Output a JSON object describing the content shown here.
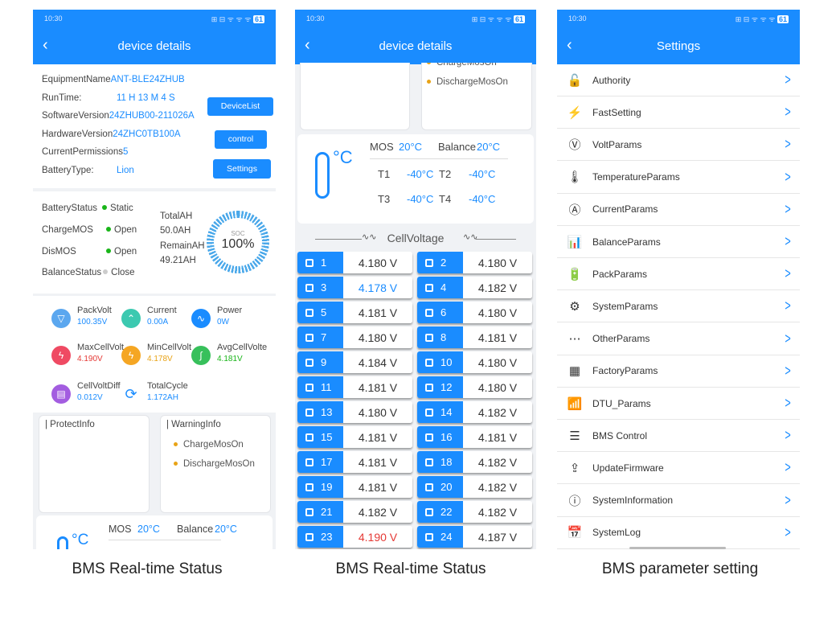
{
  "status_time": "10:30",
  "status_icons": "⊞ ⊟ ᯤ ᯤ ᯤ",
  "battery_level": "61",
  "phone1": {
    "title": "device details",
    "info": {
      "equipment_name_key": "EquipmentName",
      "equipment_name": "ANT-BLE24ZHUB",
      "runtime_key": "RunTime:",
      "runtime": "11 H 13 M 4 S",
      "software_key": "SoftwareVersion",
      "software": "24ZHUB00-211026A",
      "hardware_key": "HardwareVersion",
      "hardware": "24ZHC0TB100A",
      "permissions_key": "CurrentPermissions",
      "permissions": "5",
      "battery_type_key": "BatteryType:",
      "battery_type": "Lion"
    },
    "buttons": {
      "device_list": "DeviceList",
      "control": "control",
      "settings": "Settings"
    },
    "status": {
      "battery_status_key": "BatteryStatus",
      "battery_status": "Static",
      "charge_mos_key": "ChargeMOS",
      "charge_mos": "Open",
      "dis_mos_key": "DisMOS",
      "dis_mos": "Open",
      "balance_status_key": "BalanceStatus",
      "balance_status": "Close",
      "total_ah_key": "TotalAH",
      "total_ah": "50.0AH",
      "remain_ah_key": "RemainAH",
      "remain_ah": "49.21AH",
      "soc_label": "SOC",
      "soc_value": "100%"
    },
    "params": {
      "pack_volt_key": "PackVolt",
      "pack_volt": "100.35V",
      "current_key": "Current",
      "current": "0.00A",
      "power_key": "Power",
      "power": "0W",
      "max_cell_key": "MaxCellVolt",
      "max_cell": "4.190V",
      "min_cell_key": "MinCellVolt",
      "min_cell": "4.178V",
      "avg_cell_key": "AvgCellVolte",
      "avg_cell": "4.181V",
      "cell_diff_key": "CellVoltDiff",
      "cell_diff": "0.012V",
      "total_cycle_key": "TotalCycle",
      "total_cycle": "1.172AH"
    },
    "protect_title": "| ProtectInfo",
    "warning_title": "| WarningInfo",
    "warnings": [
      "ChargeMosOn",
      "DischargeMosOn"
    ],
    "mos_key": "MOS",
    "mos_val": "20°C",
    "balance_key": "Balance",
    "balance_val": "20°C",
    "temp_unit": "°C"
  },
  "phone2": {
    "title": "device details",
    "warnings": [
      "ChargeMosOn",
      "DischargeMosOn"
    ],
    "mos_key": "MOS",
    "mos_val": "20°C",
    "balance_key": "Balance",
    "balance_val": "20°C",
    "temp_unit": "°C",
    "t1_key": "T1",
    "t1": "-40°C",
    "t2_key": "T2",
    "t2": "-40°C",
    "t3_key": "T3",
    "t3": "-40°C",
    "t4_key": "T4",
    "t4": "-40°C",
    "cell_voltage_title": "CellVoltage",
    "cells": [
      {
        "n": "1",
        "v": "4.180 V",
        "c": "#333333"
      },
      {
        "n": "2",
        "v": "4.180 V",
        "c": "#333333"
      },
      {
        "n": "3",
        "v": "4.178 V",
        "c": "#1a8cff"
      },
      {
        "n": "4",
        "v": "4.182 V",
        "c": "#333333"
      },
      {
        "n": "5",
        "v": "4.181 V",
        "c": "#333333"
      },
      {
        "n": "6",
        "v": "4.180 V",
        "c": "#333333"
      },
      {
        "n": "7",
        "v": "4.180 V",
        "c": "#333333"
      },
      {
        "n": "8",
        "v": "4.181 V",
        "c": "#333333"
      },
      {
        "n": "9",
        "v": "4.184 V",
        "c": "#333333"
      },
      {
        "n": "10",
        "v": "4.180 V",
        "c": "#333333"
      },
      {
        "n": "11",
        "v": "4.181 V",
        "c": "#333333"
      },
      {
        "n": "12",
        "v": "4.180 V",
        "c": "#333333"
      },
      {
        "n": "13",
        "v": "4.180 V",
        "c": "#333333"
      },
      {
        "n": "14",
        "v": "4.182 V",
        "c": "#333333"
      },
      {
        "n": "15",
        "v": "4.181 V",
        "c": "#333333"
      },
      {
        "n": "16",
        "v": "4.181 V",
        "c": "#333333"
      },
      {
        "n": "17",
        "v": "4.181 V",
        "c": "#333333"
      },
      {
        "n": "18",
        "v": "4.182 V",
        "c": "#333333"
      },
      {
        "n": "19",
        "v": "4.181 V",
        "c": "#333333"
      },
      {
        "n": "20",
        "v": "4.182 V",
        "c": "#333333"
      },
      {
        "n": "21",
        "v": "4.182 V",
        "c": "#333333"
      },
      {
        "n": "22",
        "v": "4.182 V",
        "c": "#333333"
      },
      {
        "n": "23",
        "v": "4.190 V",
        "c": "#e53935"
      },
      {
        "n": "24",
        "v": "4.187 V",
        "c": "#333333"
      }
    ]
  },
  "phone3": {
    "title": "Settings",
    "items": [
      {
        "label": "Authority",
        "icon": "lock-icon",
        "glyph": "🔓"
      },
      {
        "label": "FastSetting",
        "icon": "bolt-circle-icon",
        "glyph": "⚡"
      },
      {
        "label": "VoltParams",
        "icon": "volt-icon",
        "glyph": "Ⓥ"
      },
      {
        "label": "TemperatureParams",
        "icon": "thermometer-icon",
        "glyph": "🌡"
      },
      {
        "label": "CurrentParams",
        "icon": "current-icon",
        "glyph": "Ⓐ"
      },
      {
        "label": "BalanceParams",
        "icon": "bar-chart-icon",
        "glyph": "📊"
      },
      {
        "label": "PackParams",
        "icon": "battery-icon",
        "glyph": "🔋"
      },
      {
        "label": "SystemParams",
        "icon": "system-gear-icon",
        "glyph": "⚙"
      },
      {
        "label": "OtherParams",
        "icon": "more-icon",
        "glyph": "⋯"
      },
      {
        "label": "FactoryParams",
        "icon": "factory-icon",
        "glyph": "▦"
      },
      {
        "label": "DTU_Params",
        "icon": "signal-icon",
        "glyph": "📶"
      },
      {
        "label": "BMS Control",
        "icon": "control-panel-icon",
        "glyph": "☰"
      },
      {
        "label": "UpdateFirmware",
        "icon": "upload-icon",
        "glyph": "⇪"
      },
      {
        "label": "SystemInformation",
        "icon": "info-icon",
        "glyph": "ⓘ"
      },
      {
        "label": "SystemLog",
        "icon": "log-icon",
        "glyph": "📅"
      }
    ]
  },
  "captions": [
    "BMS Real-time Status",
    "BMS Real-time Status",
    "BMS parameter setting"
  ]
}
